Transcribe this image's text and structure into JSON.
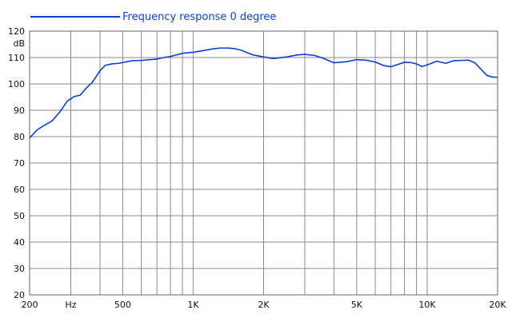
{
  "chart_data": {
    "type": "line",
    "title": "",
    "xlabel": "",
    "ylabel": "dB",
    "x_scale": "log",
    "xlim": [
      200,
      20000
    ],
    "ylim": [
      20,
      120
    ],
    "y_ticks": [
      "20",
      "30",
      "40",
      "50",
      "60",
      "70",
      "80",
      "90",
      "100",
      "110",
      "120"
    ],
    "x_tick_labels": [
      {
        "value": 200,
        "label": "200"
      },
      {
        "value": 300,
        "label": "Hz"
      },
      {
        "value": 500,
        "label": "500"
      },
      {
        "value": 1000,
        "label": "1K"
      },
      {
        "value": 2000,
        "label": "2K"
      },
      {
        "value": 5000,
        "label": "5K"
      },
      {
        "value": 10000,
        "label": "10K"
      },
      {
        "value": 20000,
        "label": "20K"
      }
    ],
    "x_gridlines": [
      300,
      400,
      500,
      600,
      700,
      800,
      900,
      1000,
      2000,
      3000,
      4000,
      5000,
      6000,
      7000,
      8000,
      9000,
      10000,
      20000
    ],
    "grid": true,
    "legend_position": "top-left",
    "colors": {
      "series": "#0a3fd4",
      "grid": "#8a8a8a"
    },
    "series": [
      {
        "name": "Frequency response 0 degree",
        "x": [
          200,
          215,
          230,
          250,
          270,
          290,
          310,
          330,
          350,
          370,
          400,
          420,
          450,
          480,
          500,
          550,
          600,
          650,
          700,
          750,
          800,
          900,
          1000,
          1100,
          1200,
          1300,
          1400,
          1500,
          1600,
          1800,
          2000,
          2200,
          2500,
          2800,
          3000,
          3300,
          3600,
          4000,
          4500,
          5000,
          5500,
          6000,
          6500,
          7000,
          7500,
          8000,
          8500,
          9000,
          9500,
          10000,
          11000,
          12000,
          13000,
          14000,
          15000,
          16000,
          17000,
          18000,
          19000,
          20000
        ],
        "y": [
          79.5,
          82.5,
          84.2,
          86.0,
          89.5,
          93.5,
          95.2,
          95.8,
          98.5,
          100.5,
          105.0,
          107.0,
          107.6,
          107.8,
          108.1,
          108.8,
          108.9,
          109.2,
          109.4,
          110.0,
          110.4,
          111.6,
          112.0,
          112.6,
          113.2,
          113.6,
          113.6,
          113.4,
          112.8,
          111.0,
          110.2,
          109.6,
          110.2,
          111.0,
          111.2,
          110.8,
          109.7,
          108.0,
          108.4,
          109.2,
          109.0,
          108.3,
          107.0,
          106.5,
          107.4,
          108.2,
          108.1,
          107.6,
          106.6,
          107.2,
          108.6,
          107.8,
          108.8,
          108.9,
          109.0,
          108.0,
          105.5,
          103.2,
          102.6,
          102.5
        ]
      }
    ]
  }
}
